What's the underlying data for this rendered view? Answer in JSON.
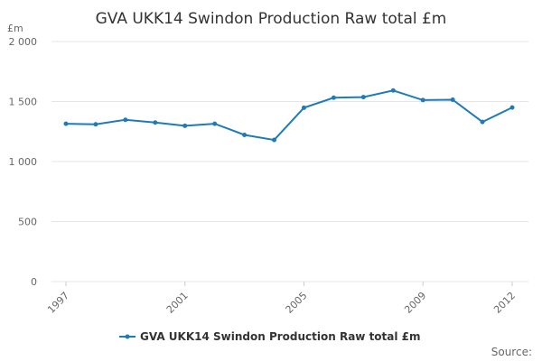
{
  "chart_data": {
    "type": "line",
    "title": "GVA UKK14 Swindon Production Raw total £m",
    "ylabel": "£m",
    "xlabel": "",
    "ylim": [
      0,
      2000
    ],
    "y_ticks": [
      0,
      500,
      1000,
      1500,
      2000
    ],
    "y_tick_labels": [
      "0",
      "500",
      "1 000",
      "1 500",
      "2 000"
    ],
    "x": [
      1997,
      1998,
      1999,
      2000,
      2001,
      2002,
      2003,
      2004,
      2005,
      2006,
      2007,
      2008,
      2009,
      2010,
      2011,
      2012
    ],
    "x_tick_labels": [
      "1997",
      "2001",
      "2005",
      "2009",
      "2012"
    ],
    "series": [
      {
        "name": "GVA UKK14 Swindon Production Raw total £m",
        "color": "#1f7ab8",
        "values": [
          1315,
          1310,
          1348,
          1325,
          1298,
          1315,
          1222,
          1180,
          1448,
          1532,
          1537,
          1592,
          1512,
          1515,
          1330,
          1450
        ]
      }
    ],
    "legend": "bottom-center",
    "grid": true,
    "source_label": "Source:"
  }
}
